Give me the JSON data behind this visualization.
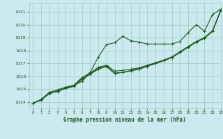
{
  "title": "Graphe pression niveau de la mer (hPa)",
  "background_color": "#cce8f0",
  "grid_color": "#99ccbb",
  "line_color": "#1a5c1a",
  "xlim": [
    -0.5,
    23
  ],
  "ylim": [
    1013.5,
    1021.7
  ],
  "yticks": [
    1014,
    1015,
    1016,
    1017,
    1018,
    1019,
    1020,
    1021
  ],
  "xticks": [
    0,
    1,
    2,
    3,
    4,
    5,
    6,
    7,
    8,
    9,
    10,
    11,
    12,
    13,
    14,
    15,
    16,
    17,
    18,
    19,
    20,
    21,
    22,
    23
  ],
  "series": [
    [
      1013.9,
      1014.2,
      1014.7,
      1014.8,
      1015.1,
      1015.3,
      1015.6,
      1016.3,
      1017.5,
      1018.45,
      1018.6,
      1019.1,
      1018.75,
      1018.65,
      1018.5,
      1018.5,
      1018.5,
      1018.5,
      1018.7,
      1019.4,
      1020.0,
      1019.5,
      1020.8,
      1021.2
    ],
    [
      1013.9,
      1014.2,
      1014.7,
      1014.85,
      1015.1,
      1015.25,
      1015.85,
      1016.2,
      1016.6,
      1016.8,
      1016.25,
      1016.3,
      1016.4,
      1016.55,
      1016.75,
      1017.0,
      1017.2,
      1017.45,
      1017.85,
      1018.25,
      1018.65,
      1018.95,
      1019.5,
      1021.1
    ],
    [
      1013.9,
      1014.2,
      1014.75,
      1014.95,
      1015.15,
      1015.3,
      1015.9,
      1016.25,
      1016.7,
      1016.85,
      1016.4,
      1016.45,
      1016.55,
      1016.65,
      1016.85,
      1017.05,
      1017.25,
      1017.5,
      1017.9,
      1018.3,
      1018.7,
      1019.0,
      1019.55,
      1021.15
    ],
    [
      1013.9,
      1014.15,
      1014.65,
      1014.85,
      1015.05,
      1015.2,
      1015.75,
      1016.15,
      1016.55,
      1016.75,
      1016.2,
      1016.3,
      1016.45,
      1016.6,
      1016.8,
      1017.0,
      1017.2,
      1017.45,
      1017.85,
      1018.25,
      1018.65,
      1018.95,
      1019.5,
      1021.1
    ]
  ]
}
